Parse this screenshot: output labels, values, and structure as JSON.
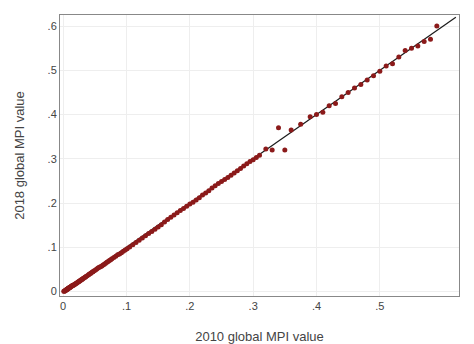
{
  "chart_data": {
    "type": "scatter",
    "xlabel": "2010 global MPI value",
    "ylabel": "2018 global MPI value",
    "xlim": [
      -0.005,
      0.625
    ],
    "ylim": [
      -0.01,
      0.625
    ],
    "xticks": [
      0,
      {
        "value": 0.1,
        "label": ".1"
      },
      {
        "value": 0.2,
        "label": ".2"
      },
      {
        "value": 0.3,
        "label": ".3"
      },
      {
        "value": 0.4,
        "label": ".4"
      },
      {
        "value": 0.5,
        "label": ".5"
      }
    ],
    "yticks": [
      0,
      {
        "value": 0.1,
        "label": ".1"
      },
      {
        "value": 0.2,
        "label": ".2"
      },
      {
        "value": 0.3,
        "label": ".3"
      },
      {
        "value": 0.4,
        "label": ".4"
      },
      {
        "value": 0.5,
        "label": ".5"
      },
      {
        "value": 0.6,
        "label": ".6"
      }
    ],
    "grid": true,
    "series": [
      {
        "type": "line",
        "color": "#1a1a1a",
        "x": [
          0,
          0.62
        ],
        "values": [
          0,
          0.62
        ]
      },
      {
        "type": "scatter",
        "color": "#8B1A1A",
        "x": [
          0.001,
          0.002,
          0.003,
          0.003,
          0.004,
          0.004,
          0.005,
          0.005,
          0.006,
          0.006,
          0.007,
          0.007,
          0.007,
          0.008,
          0.008,
          0.009,
          0.009,
          0.01,
          0.01,
          0.011,
          0.011,
          0.012,
          0.013,
          0.013,
          0.014,
          0.015,
          0.015,
          0.016,
          0.017,
          0.018,
          0.019,
          0.02,
          0.021,
          0.022,
          0.023,
          0.024,
          0.025,
          0.026,
          0.027,
          0.028,
          0.029,
          0.03,
          0.031,
          0.032,
          0.034,
          0.035,
          0.036,
          0.038,
          0.04,
          0.041,
          0.043,
          0.044,
          0.046,
          0.047,
          0.049,
          0.051,
          0.053,
          0.055,
          0.057,
          0.059,
          0.061,
          0.063,
          0.065,
          0.067,
          0.069,
          0.071,
          0.073,
          0.075,
          0.077,
          0.08,
          0.083,
          0.086,
          0.089,
          0.092,
          0.095,
          0.098,
          0.101,
          0.105,
          0.11,
          0.115,
          0.12,
          0.125,
          0.13,
          0.135,
          0.14,
          0.145,
          0.15,
          0.155,
          0.16,
          0.165,
          0.17,
          0.175,
          0.18,
          0.185,
          0.19,
          0.195,
          0.2,
          0.205,
          0.21,
          0.215,
          0.22,
          0.225,
          0.23,
          0.235,
          0.24,
          0.245,
          0.25,
          0.255,
          0.26,
          0.265,
          0.27,
          0.275,
          0.28,
          0.285,
          0.29,
          0.295,
          0.3,
          0.305,
          0.31,
          0.32,
          0.33,
          0.34,
          0.35,
          0.36,
          0.375,
          0.39,
          0.4,
          0.41,
          0.42,
          0.43,
          0.44,
          0.45,
          0.46,
          0.47,
          0.48,
          0.49,
          0.5,
          0.51,
          0.52,
          0.53,
          0.54,
          0.55,
          0.56,
          0.57,
          0.58,
          0.59
        ],
        "values": [
          0.001,
          0.001,
          0.002,
          0.002,
          0.003,
          0.003,
          0.004,
          0.004,
          0.005,
          0.005,
          0.006,
          0.006,
          0.006,
          0.007,
          0.007,
          0.008,
          0.008,
          0.009,
          0.009,
          0.01,
          0.01,
          0.011,
          0.012,
          0.012,
          0.013,
          0.014,
          0.014,
          0.015,
          0.015,
          0.016,
          0.017,
          0.018,
          0.019,
          0.02,
          0.021,
          0.022,
          0.023,
          0.024,
          0.025,
          0.026,
          0.027,
          0.028,
          0.029,
          0.03,
          0.032,
          0.033,
          0.034,
          0.036,
          0.038,
          0.039,
          0.041,
          0.042,
          0.044,
          0.045,
          0.047,
          0.049,
          0.051,
          0.053,
          0.055,
          0.056,
          0.058,
          0.06,
          0.062,
          0.064,
          0.066,
          0.068,
          0.07,
          0.072,
          0.074,
          0.077,
          0.08,
          0.083,
          0.085,
          0.088,
          0.091,
          0.094,
          0.097,
          0.101,
          0.106,
          0.111,
          0.116,
          0.121,
          0.126,
          0.131,
          0.136,
          0.141,
          0.146,
          0.151,
          0.157,
          0.163,
          0.168,
          0.173,
          0.178,
          0.183,
          0.188,
          0.193,
          0.198,
          0.202,
          0.207,
          0.212,
          0.218,
          0.223,
          0.228,
          0.234,
          0.239,
          0.244,
          0.249,
          0.253,
          0.258,
          0.263,
          0.268,
          0.273,
          0.278,
          0.284,
          0.289,
          0.294,
          0.298,
          0.303,
          0.308,
          0.322,
          0.32,
          0.37,
          0.32,
          0.365,
          0.378,
          0.395,
          0.4,
          0.405,
          0.42,
          0.425,
          0.44,
          0.45,
          0.46,
          0.468,
          0.478,
          0.488,
          0.498,
          0.51,
          0.515,
          0.53,
          0.545,
          0.55,
          0.555,
          0.565,
          0.57,
          0.6
        ]
      }
    ]
  }
}
